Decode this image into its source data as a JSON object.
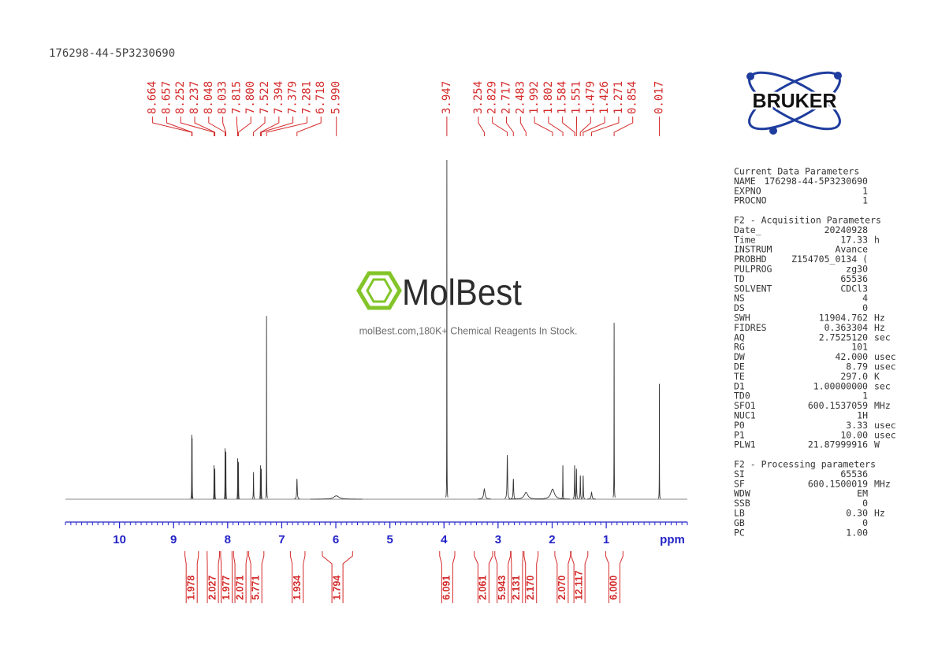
{
  "chart_data": {
    "type": "spectrum",
    "title": "176298-44-5P3230690",
    "x_label": "ppm",
    "xlim": [
      11,
      -0.5
    ],
    "xticks": [
      10,
      9,
      8,
      7,
      6,
      5,
      4,
      3,
      2,
      1
    ],
    "ylim": [
      0,
      100
    ],
    "trace_color": "#333333",
    "label_color": "#d42a2a",
    "axis_color": "#2323c8",
    "peaks": {
      "values": [
        8.664,
        8.657,
        8.252,
        8.237,
        8.048,
        8.033,
        7.815,
        7.8,
        7.522,
        7.394,
        7.379,
        7.281,
        6.718,
        5.99,
        3.947,
        3.254,
        2.829,
        2.717,
        2.483,
        1.992,
        1.802,
        1.584,
        1.551,
        1.479,
        1.426,
        1.271,
        0.854,
        0.017
      ],
      "value_labels": [
        "8.664",
        "8.657",
        "8.252",
        "8.237",
        "8.048",
        "8.033",
        "7.815",
        "7.800",
        "7.522",
        "7.394",
        "7.379",
        "7.281",
        "6.718",
        "5.990",
        "3.947",
        "3.254",
        "2.829",
        "2.717",
        "2.483",
        "1.992",
        "1.802",
        "1.584",
        "1.551",
        "1.479",
        "1.426",
        "1.271",
        "0.854",
        "0.017"
      ],
      "intensities": [
        19,
        18,
        10,
        9,
        15,
        14,
        12,
        11,
        8,
        10,
        9,
        54,
        6,
        1,
        100,
        3,
        13,
        6,
        2,
        3,
        10,
        10,
        9,
        7,
        7,
        2,
        52,
        34
      ],
      "linewidths": [
        0.004,
        0.004,
        0.004,
        0.004,
        0.004,
        0.004,
        0.004,
        0.004,
        0.006,
        0.005,
        0.005,
        0.003,
        0.012,
        0.12,
        0.003,
        0.03,
        0.012,
        0.012,
        0.08,
        0.08,
        0.006,
        0.008,
        0.008,
        0.008,
        0.008,
        0.02,
        0.004,
        0.003
      ]
    },
    "integrals": {
      "regions": [
        [
          8.79,
          8.54
        ],
        [
          8.38,
          8.15
        ],
        [
          8.13,
          7.92
        ],
        [
          7.89,
          7.64
        ],
        [
          7.61,
          7.33
        ],
        [
          6.84,
          6.57
        ],
        [
          6.25,
          5.69
        ],
        [
          4.08,
          3.8
        ],
        [
          3.44,
          3.1
        ],
        [
          3.06,
          2.77
        ],
        [
          2.76,
          2.54
        ],
        [
          2.52,
          2.26
        ],
        [
          1.95,
          1.66
        ],
        [
          1.65,
          1.34
        ],
        [
          1.01,
          0.69
        ]
      ],
      "values": [
        1.978,
        2.027,
        1.977,
        2.071,
        5.771,
        1.934,
        1.794,
        6.091,
        2.061,
        5.943,
        2.131,
        2.17,
        2.07,
        12.117,
        6
      ],
      "value_labels": [
        "1.978",
        "2.027",
        "1.977",
        "2.071",
        "5.771",
        "1.934",
        "1.794",
        "6.091",
        "2.061",
        "5.943",
        "2.131",
        "2.170",
        "2.070",
        "12.117",
        "6.000"
      ]
    }
  },
  "logo": "BRUKER",
  "watermark": {
    "brand": "MolBest",
    "tagline": "molBest.com,180K+ Chemical Reagents In Stock."
  },
  "parameters": {
    "sections": [
      {
        "title": "Current Data Parameters",
        "rows": [
          [
            "NAME",
            "176298-44-5P3230690"
          ],
          [
            "EXPNO",
            "1"
          ],
          [
            "PROCNO",
            "1"
          ]
        ]
      },
      {
        "title": "F2 - Acquisition Parameters",
        "rows": [
          [
            "Date_",
            "20240928"
          ],
          [
            "Time",
            "17.33",
            "h"
          ],
          [
            "INSTRUM",
            "Avance"
          ],
          [
            "PROBHD",
            "Z154705_0134 ("
          ],
          [
            "PULPROG",
            "zg30"
          ],
          [
            "TD",
            "65536"
          ],
          [
            "SOLVENT",
            "CDCl3"
          ],
          [
            "NS",
            "4"
          ],
          [
            "DS",
            "0"
          ],
          [
            "SWH",
            "11904.762",
            "Hz"
          ],
          [
            "FIDRES",
            "0.363304",
            "Hz"
          ],
          [
            "AQ",
            "2.7525120",
            "sec"
          ],
          [
            "RG",
            "101"
          ],
          [
            "DW",
            "42.000",
            "usec"
          ],
          [
            "DE",
            "8.79",
            "usec"
          ],
          [
            "TE",
            "297.0",
            "K"
          ],
          [
            "D1",
            "1.00000000",
            "sec"
          ],
          [
            "TD0",
            "1"
          ],
          [
            "SFO1",
            "600.1537059",
            "MHz"
          ],
          [
            "NUC1",
            "1H"
          ],
          [
            "P0",
            "3.33",
            "usec"
          ],
          [
            "P1",
            "10.00",
            "usec"
          ],
          [
            "PLW1",
            "21.87999916",
            "W"
          ]
        ]
      },
      {
        "title": "F2 - Processing parameters",
        "rows": [
          [
            "SI",
            "65536"
          ],
          [
            "SF",
            "600.1500019",
            "MHz"
          ],
          [
            "WDW",
            "EM"
          ],
          [
            "SSB",
            "0"
          ],
          [
            "LB",
            "0.30",
            "Hz"
          ],
          [
            "GB",
            "0"
          ],
          [
            "PC",
            "1.00"
          ]
        ]
      }
    ]
  }
}
